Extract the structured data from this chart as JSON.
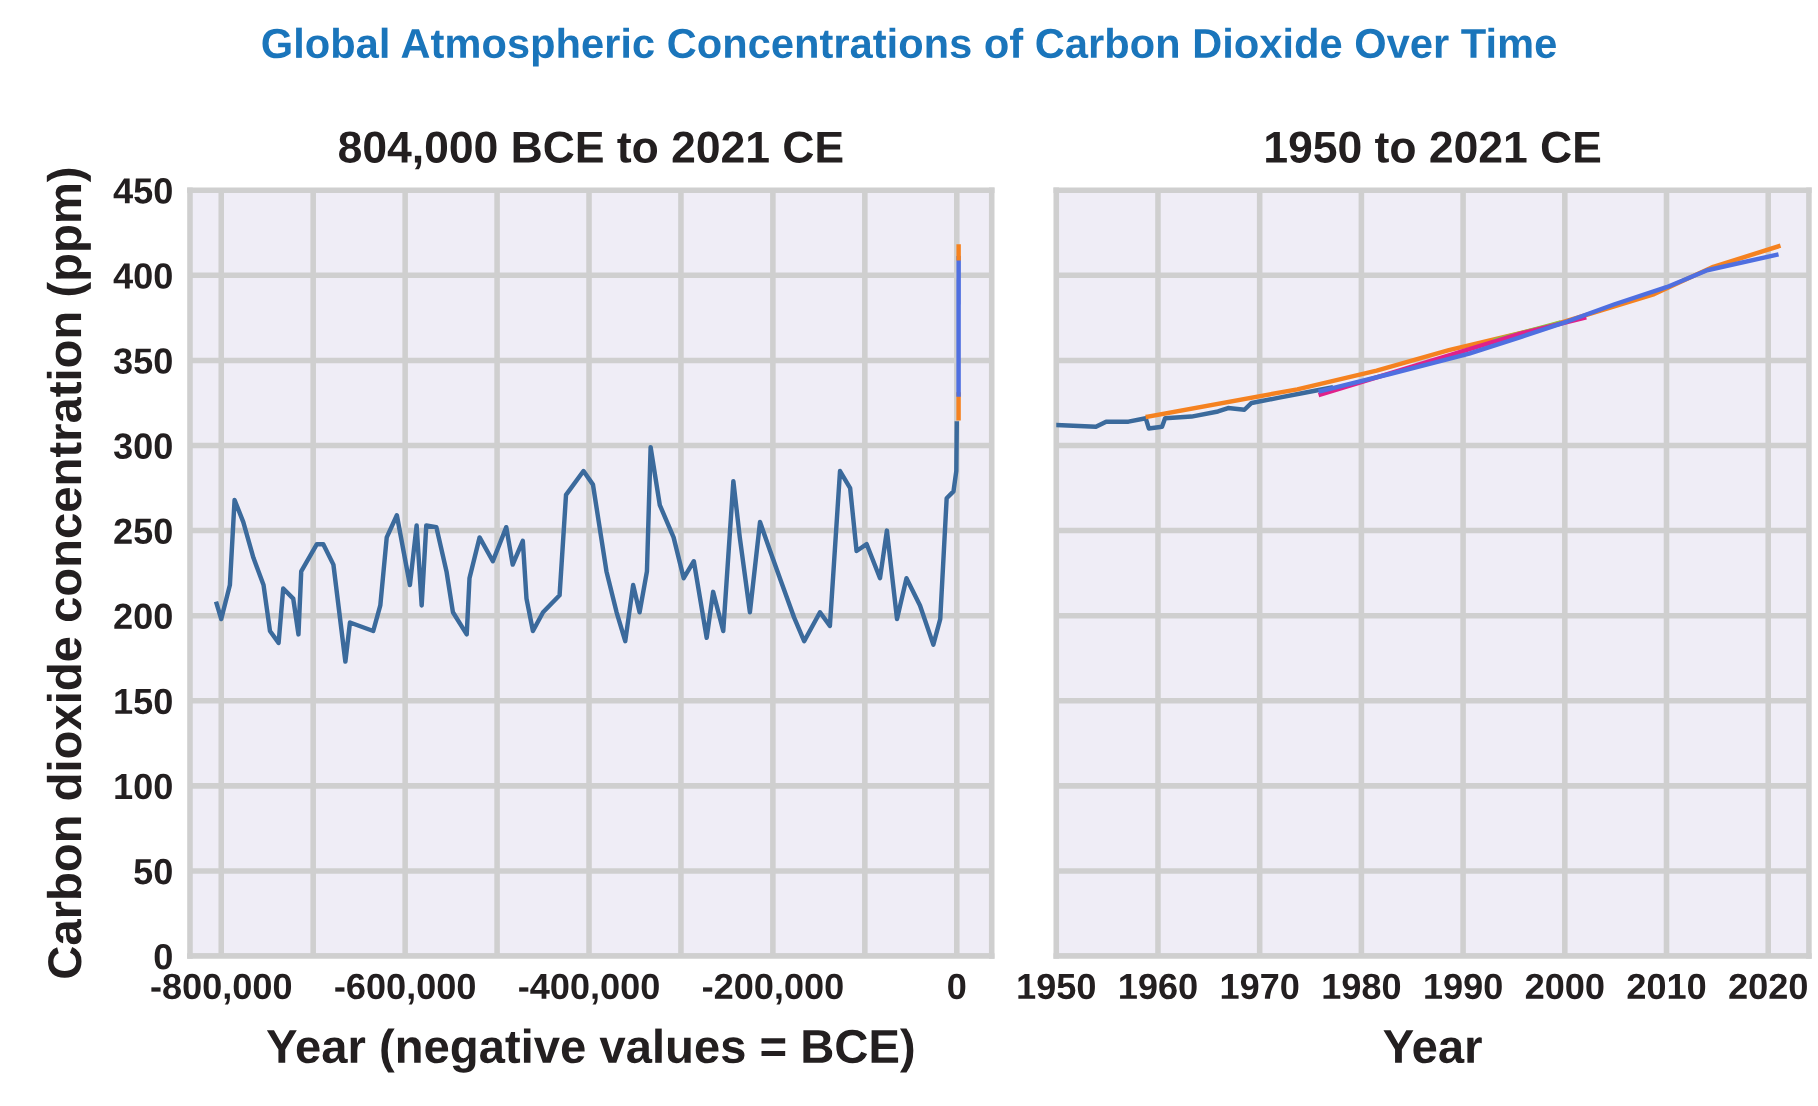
{
  "chart_data": [
    {
      "type": "line",
      "title": "Global Atmospheric Concentrations of Carbon Dioxide Over Time",
      "subtitle": "804,000 BCE to 2021 CE",
      "xlabel": "Year (negative values = BCE)",
      "ylabel": "Carbon dioxide concentration (ppm)",
      "xlim": [
        -834000,
        38000
      ],
      "ylim": [
        0,
        450
      ],
      "xticks": [
        {
          "value": -800000,
          "label": "-800,000"
        },
        {
          "value": -700000,
          "label": null
        },
        {
          "value": -600000,
          "label": "-600,000"
        },
        {
          "value": -500000,
          "label": null
        },
        {
          "value": -400000,
          "label": "-400,000"
        },
        {
          "value": -300000,
          "label": null
        },
        {
          "value": -200000,
          "label": "-200,000"
        },
        {
          "value": -100000,
          "label": null
        },
        0
      ],
      "yticks": [
        0,
        50,
        100,
        150,
        200,
        250,
        300,
        350,
        400,
        450
      ],
      "grid": true,
      "legend": false,
      "series": [
        {
          "color": "#3b6a9c",
          "x": [
            -805000,
            -800000,
            -790600,
            -785500,
            -776000,
            -765000,
            -754000,
            -747000,
            -737600,
            -732600,
            -721700,
            -716000,
            -713000,
            -696000,
            -689000,
            -678000,
            -665000,
            -660000,
            -634700,
            -627000,
            -620000,
            -609000,
            -594800,
            -587500,
            -582000,
            -577000,
            -566000,
            -555000,
            -548000,
            -533000,
            -530000,
            -519000,
            -504600,
            -490000,
            -483000,
            -472000,
            -468000,
            -461000,
            -450000,
            -432000,
            -425000,
            -406000,
            -395700,
            -381000,
            -370000,
            -360600,
            -352000,
            -345000,
            -337000,
            -333000,
            -323000,
            -308000,
            -297000,
            -286000,
            -272000,
            -265000,
            -254000,
            -243000,
            -236000,
            -225000,
            -214000,
            -203000,
            -191000,
            -177000,
            -166000,
            -148800,
            -138000,
            -127000,
            -116000,
            -109000,
            -98000,
            -83500,
            -76000,
            -65000,
            -54700,
            -40000,
            -25500,
            -18000,
            -11000,
            -3600,
            -500,
            0
          ],
          "values": [
            207,
            198,
            218,
            268,
            255,
            234,
            218,
            191,
            184,
            216,
            210,
            189,
            226,
            242,
            242,
            230,
            173,
            196,
            191,
            206,
            246,
            259,
            218,
            253,
            206,
            253,
            252,
            226,
            202,
            189,
            222,
            246,
            232,
            252,
            230,
            244,
            210,
            191,
            202,
            212,
            271,
            285,
            277,
            226,
            202,
            185,
            218,
            202,
            226,
            299,
            265,
            246,
            222,
            232,
            187,
            214,
            191,
            279,
            246,
            202,
            255,
            238,
            220,
            199,
            185,
            202,
            194,
            285,
            275,
            238,
            242,
            222,
            250,
            198,
            222,
            206,
            183,
            198,
            269,
            273,
            285,
            313
          ]
        },
        {
          "color": "#f58220",
          "x": [
            1959,
            1978
          ],
          "values": [
            316,
            330
          ]
        },
        {
          "color": "#4f6fe0",
          "x": [
            1978,
            2019
          ],
          "values": [
            330,
            410
          ]
        },
        {
          "color": "#f58220",
          "x": [
            2019,
            2021
          ],
          "values": [
            410,
            417
          ]
        }
      ]
    },
    {
      "type": "line",
      "title": "1950 to 2021 CE",
      "xlabel": "Year",
      "xlim": [
        1950,
        2024
      ],
      "ylim": [
        0,
        450
      ],
      "xticks": [
        1950,
        1960,
        1970,
        1980,
        1990,
        2000,
        2010,
        2020
      ],
      "yticks": [
        0,
        50,
        100,
        150,
        200,
        250,
        300,
        350,
        400,
        450
      ],
      "tick_labels": "x",
      "grid": true,
      "legend": false,
      "series": [
        {
          "color": "#3b6a9c",
          "x": [
            1950,
            1953.9,
            1954.9,
            1957.1,
            1958.8,
            1959.1,
            1960.4,
            1960.7,
            1963.3,
            1965.9,
            1966.9,
            1968.5,
            1969.2,
            1971.8,
            1974.4,
            1977
          ],
          "values": [
            312,
            311,
            314,
            314,
            316,
            310,
            311,
            316,
            317,
            320,
            322,
            321,
            325,
            328,
            331,
            334
          ]
        },
        {
          "color": "#f58220",
          "x": [
            1959,
            1973.7,
            1981.5,
            1988.6,
            1998.4,
            2002.3,
            2008.8,
            2014.6,
            2021
          ],
          "values": [
            317,
            333,
            344,
            356,
            370,
            377,
            389,
            405,
            417
          ]
        },
        {
          "color": "#8cc63f",
          "x": [
            1993.2,
            1999.4
          ],
          "values": [
            362,
            372
          ]
        },
        {
          "color": "#e0218a",
          "x": [
            1976,
            1995.8,
            2001.9
          ],
          "values": [
            330,
            366,
            375
          ]
        },
        {
          "color": "#4f6fe0",
          "x": [
            1976,
            1982.8,
            1986.7,
            1990.6,
            1995.8,
            2000.3,
            2004.9,
            2010,
            2014,
            2020.8
          ],
          "values": [
            332,
            342,
            348,
            354,
            364,
            373,
            383,
            393,
            403,
            412
          ]
        }
      ]
    }
  ]
}
